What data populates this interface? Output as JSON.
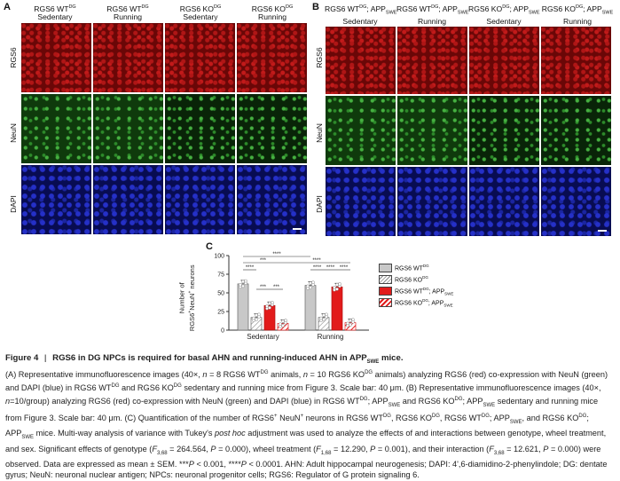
{
  "panelA": {
    "letter": "A",
    "columns": [
      "RGS6 WT^DG Sedentary",
      "RGS6 WT^DG Running",
      "RGS6 KO^DG Sedentary",
      "RGS6 KO^DG Running"
    ],
    "rows": [
      "RGS6",
      "NeuN",
      "DAPI"
    ]
  },
  "panelB": {
    "letter": "B",
    "columns": [
      "RGS6 WT^DG; APP_SWE Sedentary",
      "RGS6 WT^DG; APP_SWE Running",
      "RGS6 KO^DG; APP_SWE Sedentary",
      "RGS6 KO^DG; APP_SWE Running"
    ],
    "rows": [
      "RGS6",
      "NeuN",
      "DAPI"
    ]
  },
  "panelC": {
    "letter": "C",
    "ylabel": "Number of RGS6+NeuN+ neurons",
    "legend": [
      "RGS6 WT^DG",
      "RGS6 KO^DG",
      "RGS6 WT^DG; APP_SWE",
      "RGS6 KO^DG; APP_SWE"
    ]
  },
  "colors": {
    "wt": "#c8c8c8",
    "ko": "#ffffff",
    "wt_app": "#e21b1b",
    "ko_app": "#e21b1b"
  },
  "chart_data": {
    "type": "bar",
    "categories": [
      "Sedentary",
      "Running"
    ],
    "series": [
      {
        "name": "RGS6 WT^DG",
        "values": [
          62,
          60
        ]
      },
      {
        "name": "RGS6 KO^DG",
        "values": [
          17,
          17
        ]
      },
      {
        "name": "RGS6 WT^DG; APP_SWE",
        "values": [
          33,
          58
        ]
      },
      {
        "name": "RGS6 KO^DG; APP_SWE",
        "values": [
          9,
          10
        ]
      }
    ],
    "ylim": [
      0,
      100
    ],
    "yticks": [
      0,
      25,
      50,
      75,
      100
    ],
    "ylabel": "Number of RGS6+NeuN+ neurons",
    "significance": [
      "****",
      "***",
      "****",
      "****",
      "***",
      "***",
      "****",
      "****",
      "****",
      "****"
    ]
  },
  "caption": {
    "figure_label": "Figure 4",
    "title": "RGS6 in DG NPCs is required for basal AHN and running-induced AHN in APP",
    "title_sub": "SWE",
    "title_end": " mice.",
    "body": "(A) Representative immunofluorescence images (40×, n = 8 RGS6 WTDG animals, n = 10 RGS6 KODG animals) analyzing RGS6 (red) co-expression with NeuN (green) and DAPI (blue) in RGS6 WTDG and RGS6 KODG sedentary and running mice from Figure 3. Scale bar: 40 μm. (B) Representative immunofluorescence images (40×, n=10/group) analyzing RGS6 (red) co-expression with NeuN (green) and DAPI (blue) in RGS6 WTDG; APPSWE and RGS6 KODG; APPSWE sedentary and running mice from Figure 3. Scale bar: 40 μm. (C) Quantification of the number of RGS6+ NeuN+ neurons in RGS6 WTDG, RGS6 KODG, RGS6 WTDG; APPSWE, and RGS6 KODG; APPSWE mice. Multi-way analysis of variance with Tukey's post hoc adjustment was used to analyze the effects of and interactions between genotype, wheel treatment, and sex. Significant effects of genotype (F3,68 = 264.564, P = 0.000), wheel treatment (F1,68 = 12.290, P = 0.001), and their interaction (F3,68 = 12.621, P = 0.000) were observed. Data are expressed as mean ± SEM. ***P < 0.001, ****P < 0.0001. AHN: Adult hippocampal neurogenesis; DAPI: 4',6-diamidino-2-phenylindole; DG: dentate gyrus; NeuN: neuronal nuclear antigen; NPCs: neuronal progenitor cells; RGS6: Regulator of G protein signaling 6."
  }
}
